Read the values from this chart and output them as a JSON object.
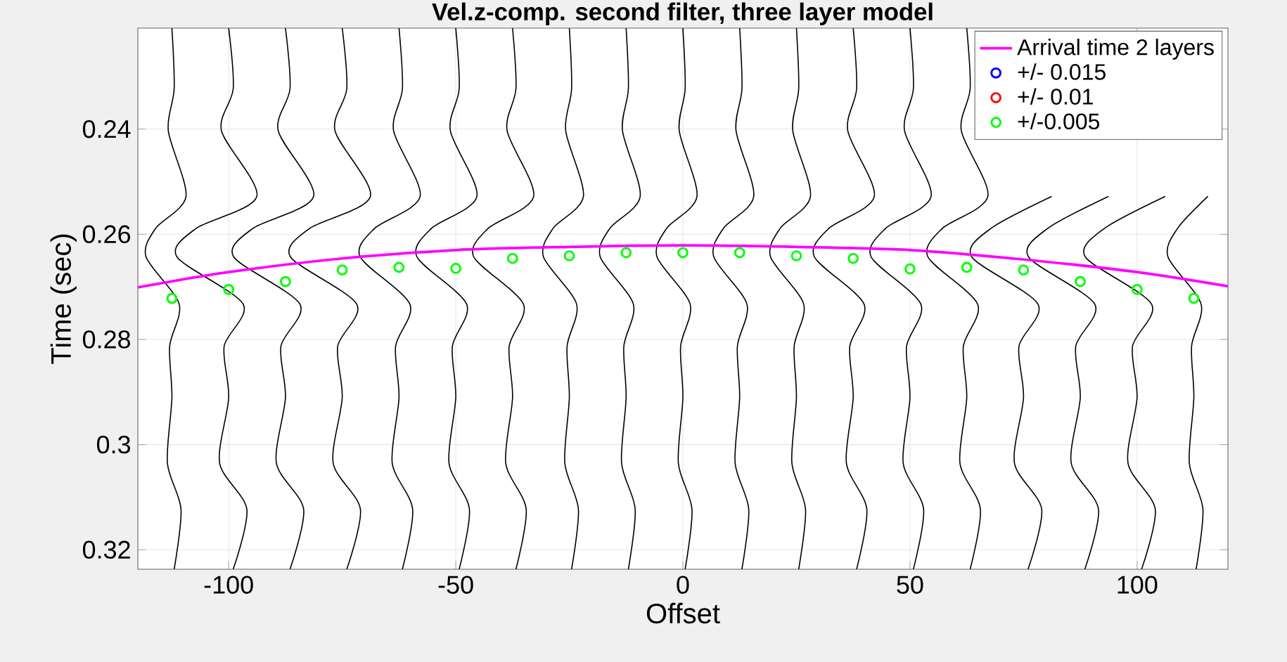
{
  "chart_data": {
    "type": "line",
    "title": "Vel.z-comp. second filter, three layer model",
    "xlabel": "Offset",
    "ylabel": "Time (sec)",
    "xlim": [
      -120,
      120
    ],
    "ylim": [
      0.3237,
      0.2208
    ],
    "xticks": [
      -100,
      -50,
      0,
      50,
      100
    ],
    "yticks": [
      0.24,
      0.26,
      0.28,
      0.3,
      0.32
    ],
    "grid": true,
    "legend": "top right",
    "series": [
      {
        "color": "#000000",
        "x": [
          -112.5,
          -112,
          -113.3,
          -109.4,
          -116.1,
          -118.2,
          -110.9,
          -113,
          -112.5,
          -113.5,
          -110.5,
          -112
        ],
        "values": [
          0.2208,
          0.2323,
          0.2403,
          0.2528,
          0.2589,
          0.2643,
          0.2733,
          0.2813,
          0.291,
          0.3035,
          0.3123,
          0.3237
        ]
      },
      {
        "color": "#000000",
        "x": [
          -100,
          -99,
          -101.6,
          -93.8,
          -107.2,
          -111.4,
          -96.8,
          -101,
          -100,
          -102,
          -96,
          -99
        ],
        "values": [
          0.2208,
          0.2323,
          0.2403,
          0.2528,
          0.2589,
          0.2643,
          0.2733,
          0.2813,
          0.291,
          0.3035,
          0.3123,
          0.3237
        ]
      },
      {
        "color": "#000000",
        "x": [
          -87.5,
          -86.5,
          -89.1,
          -81.3,
          -94.7,
          -98.9,
          -84.3,
          -88.5,
          -87.5,
          -89.5,
          -83.5,
          -86.5
        ],
        "values": [
          0.2208,
          0.2323,
          0.2403,
          0.2528,
          0.2589,
          0.2643,
          0.2733,
          0.2813,
          0.291,
          0.3035,
          0.3123,
          0.3237
        ]
      },
      {
        "color": "#000000",
        "x": [
          -75,
          -74,
          -76.6,
          -68.8,
          -82.2,
          -86.4,
          -71.8,
          -76,
          -75,
          -77,
          -71,
          -74
        ],
        "values": [
          0.2208,
          0.2323,
          0.2403,
          0.2528,
          0.2589,
          0.2643,
          0.2733,
          0.2813,
          0.291,
          0.3035,
          0.3123,
          0.3237
        ]
      },
      {
        "color": "#000000",
        "x": [
          -62.5,
          -61.75,
          -63.7,
          -57.85,
          -67.9,
          -71.05,
          -60.1,
          -63.25,
          -62.5,
          -64,
          -59.5,
          -61.75
        ],
        "values": [
          0.2208,
          0.2323,
          0.2403,
          0.2528,
          0.2589,
          0.2643,
          0.2733,
          0.2813,
          0.291,
          0.3035,
          0.3123,
          0.3237
        ]
      },
      {
        "color": "#000000",
        "x": [
          -50,
          -49.25,
          -51.2,
          -45.35,
          -55.4,
          -58.55,
          -47.6,
          -50.75,
          -50,
          -51.5,
          -47,
          -49.25
        ],
        "values": [
          0.2208,
          0.2323,
          0.2403,
          0.2528,
          0.2589,
          0.2643,
          0.2733,
          0.2813,
          0.291,
          0.3035,
          0.3123,
          0.3237
        ]
      },
      {
        "color": "#000000",
        "x": [
          -37.5,
          -36.75,
          -38.7,
          -32.85,
          -42.9,
          -46.05,
          -35.1,
          -38.25,
          -37.5,
          -39,
          -34.5,
          -36.75
        ],
        "values": [
          0.2208,
          0.2323,
          0.2403,
          0.2528,
          0.2589,
          0.2643,
          0.2733,
          0.2813,
          0.291,
          0.3035,
          0.3123,
          0.3237
        ]
      },
      {
        "color": "#000000",
        "x": [
          -25,
          -24.5,
          -25.8,
          -21.9,
          -28.6,
          -30.7,
          -23.4,
          -25.5,
          -25,
          -26,
          -23,
          -24.5
        ],
        "values": [
          0.2208,
          0.2323,
          0.2403,
          0.2528,
          0.2589,
          0.2643,
          0.2733,
          0.2813,
          0.291,
          0.3035,
          0.3123,
          0.3237
        ]
      },
      {
        "color": "#000000",
        "x": [
          -12.5,
          -12,
          -13.3,
          -9.4,
          -16.1,
          -18.2,
          -10.9,
          -13,
          -12.5,
          -13.5,
          -10.5,
          -12
        ],
        "values": [
          0.2208,
          0.2323,
          0.2403,
          0.2528,
          0.2589,
          0.2643,
          0.2733,
          0.2813,
          0.291,
          0.3035,
          0.3123,
          0.3237
        ]
      },
      {
        "color": "#000000",
        "x": [
          0,
          0.5,
          -0.8,
          3.1,
          -3.6,
          -5.7,
          1.6,
          -0.5,
          0,
          -1,
          2,
          0.5
        ],
        "values": [
          0.2208,
          0.2323,
          0.2403,
          0.2528,
          0.2589,
          0.2643,
          0.2733,
          0.2813,
          0.291,
          0.3035,
          0.3123,
          0.3237
        ]
      },
      {
        "color": "#000000",
        "x": [
          12.5,
          13,
          11.7,
          15.6,
          8.9,
          6.8,
          14.1,
          12,
          12.5,
          11.5,
          14.5,
          13
        ],
        "values": [
          0.2208,
          0.2323,
          0.2403,
          0.2528,
          0.2589,
          0.2643,
          0.2733,
          0.2813,
          0.291,
          0.3035,
          0.3123,
          0.3237
        ]
      },
      {
        "color": "#000000",
        "x": [
          25,
          25.5,
          24.2,
          28.1,
          21.4,
          19.3,
          26.6,
          24.5,
          25,
          24,
          27,
          25.5
        ],
        "values": [
          0.2208,
          0.2323,
          0.2403,
          0.2528,
          0.2589,
          0.2643,
          0.2733,
          0.2813,
          0.291,
          0.3035,
          0.3123,
          0.3237
        ]
      },
      {
        "color": "#000000",
        "x": [
          37.5,
          38.25,
          36.3,
          42.15,
          32.1,
          28.95,
          39.9,
          36.75,
          37.5,
          36,
          40.5,
          38.25
        ],
        "values": [
          0.2208,
          0.2323,
          0.2403,
          0.2528,
          0.2589,
          0.2643,
          0.2733,
          0.2813,
          0.291,
          0.3035,
          0.3123,
          0.3237
        ]
      },
      {
        "color": "#000000",
        "x": [
          50,
          50.75,
          48.8,
          54.65,
          44.6,
          41.45,
          52.4,
          49.25,
          50,
          48.5,
          53,
          50.75
        ],
        "values": [
          0.2208,
          0.2323,
          0.2403,
          0.2528,
          0.2589,
          0.2643,
          0.2733,
          0.2813,
          0.291,
          0.3035,
          0.3123,
          0.3237
        ]
      },
      {
        "color": "#000000",
        "x": [
          62.5,
          63.25,
          61.3,
          67.15,
          57.1,
          53.95,
          64.9,
          61.75,
          62.5,
          61,
          65.5,
          63.25
        ],
        "values": [
          0.2208,
          0.2323,
          0.2403,
          0.2528,
          0.2589,
          0.2643,
          0.2733,
          0.2813,
          0.291,
          0.3035,
          0.3123,
          0.3237
        ]
      },
      {
        "color": "#000000",
        "x": [
          81.2,
          67.8,
          63.6,
          78.2,
          74,
          75,
          73,
          79,
          76
        ],
        "values": [
          0.2528,
          0.2589,
          0.2643,
          0.2733,
          0.2813,
          0.291,
          0.3035,
          0.3123,
          0.3237
        ]
      },
      {
        "color": "#000000",
        "x": [
          93.7,
          80.3,
          76.1,
          90.7,
          86.5,
          87.5,
          85.5,
          91.5,
          88.5
        ],
        "values": [
          0.2528,
          0.2589,
          0.2643,
          0.2733,
          0.2813,
          0.291,
          0.3035,
          0.3123,
          0.3237
        ]
      },
      {
        "color": "#000000",
        "x": [
          106.2,
          92.8,
          88.6,
          103.2,
          99,
          100,
          98,
          104,
          101
        ],
        "values": [
          0.2528,
          0.2589,
          0.2643,
          0.2733,
          0.2813,
          0.291,
          0.3035,
          0.3123,
          0.3237
        ]
      },
      {
        "color": "#000000",
        "x": [
          115.6,
          108.9,
          106.8,
          114.1,
          112,
          112.5,
          111.5,
          114.5,
          113
        ],
        "values": [
          0.2528,
          0.2589,
          0.2643,
          0.2733,
          0.2813,
          0.291,
          0.3035,
          0.3123,
          0.3237
        ]
      },
      {
        "name": "Arrival time 2 layers",
        "color": "#ff00ff",
        "x": [
          -120,
          -100,
          -75,
          -50,
          -25,
          0,
          25,
          50,
          75,
          100,
          120
        ],
        "values": [
          0.2701,
          0.2672,
          0.2646,
          0.263,
          0.2624,
          0.2621,
          0.2624,
          0.263,
          0.2648,
          0.2672,
          0.2699
        ]
      },
      {
        "type": "scatter",
        "name": "+/- 0.015",
        "color": "#0000ff",
        "marker": "circle",
        "values": [
          null,
          null,
          null,
          null,
          null,
          null,
          null,
          null,
          null,
          null,
          null,
          null,
          null,
          null,
          null,
          null,
          null,
          null,
          null
        ]
      },
      {
        "type": "scatter",
        "name": "+/- 0.01",
        "color": "#ff0000",
        "marker": "circle",
        "values": [
          null,
          null,
          null,
          null,
          null,
          null,
          null,
          null,
          null,
          null,
          null,
          null,
          null,
          null,
          null,
          null,
          null,
          null,
          null
        ]
      },
      {
        "type": "scatter",
        "name": "+/-0.005",
        "color": "#00ff00",
        "marker": "circle",
        "x": [
          -112.5,
          -100,
          -87.5,
          -75,
          -62.5,
          -50,
          -37.5,
          -25,
          -12.5,
          0,
          12.5,
          25,
          37.5,
          50,
          62.5,
          75,
          87.5,
          100,
          112.5
        ],
        "values": [
          0.2722,
          0.2705,
          0.269,
          0.2668,
          0.2663,
          0.2665,
          0.2646,
          0.2641,
          0.2635,
          0.2635,
          0.2635,
          0.2641,
          0.2646,
          0.2666,
          0.2663,
          0.2668,
          0.269,
          0.2705,
          0.2722
        ]
      }
    ]
  }
}
